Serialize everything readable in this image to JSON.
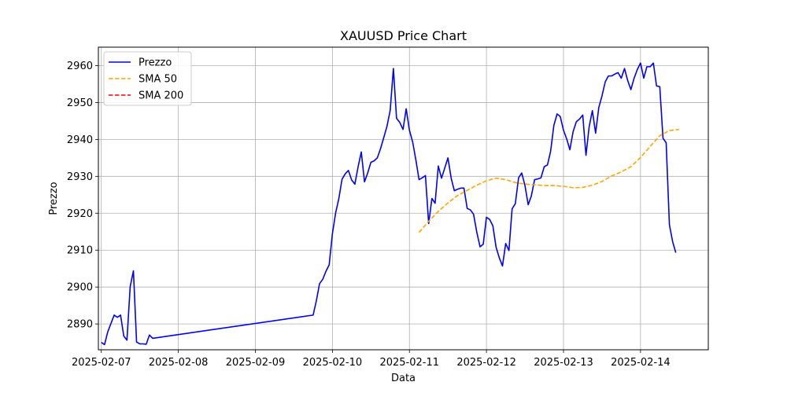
{
  "chart_data": {
    "type": "line",
    "title": "XAUUSD Price Chart",
    "xlabel": "Data",
    "ylabel": "Prezzo",
    "ylim": [
      2883.0,
      2965.0
    ],
    "xlim": [
      -0.038,
      7.88
    ],
    "grid": true,
    "legend_position": "top-left",
    "x_unit": "days since 2025-02-07 00:00",
    "x_ticks": [
      {
        "x": 0,
        "label": "2025-02-07"
      },
      {
        "x": 1,
        "label": "2025-02-08"
      },
      {
        "x": 2,
        "label": "2025-02-09"
      },
      {
        "x": 3,
        "label": "2025-02-10"
      },
      {
        "x": 4,
        "label": "2025-02-11"
      },
      {
        "x": 5,
        "label": "2025-02-12"
      },
      {
        "x": 6,
        "label": "2025-02-13"
      },
      {
        "x": 7,
        "label": "2025-02-14"
      }
    ],
    "y_ticks": [
      2890,
      2900,
      2910,
      2920,
      2930,
      2940,
      2950,
      2960
    ],
    "series": [
      {
        "name": "Prezzo",
        "color": "#0000ff",
        "style": "solid",
        "points": [
          [
            0.0,
            2885.0
          ],
          [
            0.042,
            2884.4
          ],
          [
            0.083,
            2887.8
          ],
          [
            0.125,
            2890.1
          ],
          [
            0.167,
            2892.4
          ],
          [
            0.208,
            2891.8
          ],
          [
            0.25,
            2892.4
          ],
          [
            0.292,
            2886.7
          ],
          [
            0.333,
            2885.6
          ],
          [
            0.375,
            2900.1
          ],
          [
            0.417,
            2904.4
          ],
          [
            0.458,
            2885.1
          ],
          [
            0.5,
            2884.6
          ],
          [
            0.542,
            2884.6
          ],
          [
            0.583,
            2884.5
          ],
          [
            0.625,
            2887.0
          ],
          [
            0.667,
            2886.1
          ],
          [
            2.75,
            2892.4
          ],
          [
            2.792,
            2896.3
          ],
          [
            2.833,
            2900.9
          ],
          [
            2.875,
            2902.1
          ],
          [
            2.917,
            2904.3
          ],
          [
            2.958,
            2906.0
          ],
          [
            3.0,
            2914.4
          ],
          [
            3.042,
            2920.1
          ],
          [
            3.083,
            2923.9
          ],
          [
            3.125,
            2929.2
          ],
          [
            3.167,
            2930.7
          ],
          [
            3.208,
            2931.6
          ],
          [
            3.25,
            2929.0
          ],
          [
            3.292,
            2927.9
          ],
          [
            3.333,
            2932.5
          ],
          [
            3.375,
            2936.6
          ],
          [
            3.417,
            2928.5
          ],
          [
            3.458,
            2930.9
          ],
          [
            3.5,
            2933.8
          ],
          [
            3.542,
            2934.2
          ],
          [
            3.583,
            2935.0
          ],
          [
            3.625,
            2937.5
          ],
          [
            3.667,
            2940.5
          ],
          [
            3.708,
            2943.5
          ],
          [
            3.75,
            2947.8
          ],
          [
            3.792,
            2959.2
          ],
          [
            3.833,
            2945.7
          ],
          [
            3.875,
            2944.6
          ],
          [
            3.917,
            2942.7
          ],
          [
            3.958,
            2948.3
          ],
          [
            4.0,
            2942.5
          ],
          [
            4.042,
            2939.3
          ],
          [
            4.083,
            2934.5
          ],
          [
            4.125,
            2929.1
          ],
          [
            4.167,
            2929.6
          ],
          [
            4.208,
            2930.2
          ],
          [
            4.25,
            2917.2
          ],
          [
            4.292,
            2924.0
          ],
          [
            4.333,
            2922.7
          ],
          [
            4.375,
            2932.8
          ],
          [
            4.417,
            2929.5
          ],
          [
            4.458,
            2932.2
          ],
          [
            4.5,
            2935.0
          ],
          [
            4.542,
            2929.5
          ],
          [
            4.583,
            2926.1
          ],
          [
            4.625,
            2926.5
          ],
          [
            4.667,
            2926.8
          ],
          [
            4.708,
            2926.8
          ],
          [
            4.75,
            2921.3
          ],
          [
            4.792,
            2920.9
          ],
          [
            4.833,
            2919.7
          ],
          [
            4.875,
            2914.8
          ],
          [
            4.917,
            2910.9
          ],
          [
            4.958,
            2911.6
          ],
          [
            5.0,
            2918.9
          ],
          [
            5.042,
            2918.3
          ],
          [
            5.083,
            2916.6
          ],
          [
            5.125,
            2910.8
          ],
          [
            5.167,
            2907.9
          ],
          [
            5.208,
            2905.7
          ],
          [
            5.25,
            2911.8
          ],
          [
            5.292,
            2909.9
          ],
          [
            5.333,
            2921.2
          ],
          [
            5.375,
            2922.6
          ],
          [
            5.417,
            2929.6
          ],
          [
            5.458,
            2930.9
          ],
          [
            5.5,
            2927.5
          ],
          [
            5.542,
            2922.3
          ],
          [
            5.583,
            2924.7
          ],
          [
            5.625,
            2929.1
          ],
          [
            5.667,
            2929.3
          ],
          [
            5.708,
            2929.6
          ],
          [
            5.75,
            2932.6
          ],
          [
            5.792,
            2933.1
          ],
          [
            5.833,
            2936.8
          ],
          [
            5.875,
            2943.8
          ],
          [
            5.917,
            2946.9
          ],
          [
            5.958,
            2946.2
          ],
          [
            6.0,
            2942.5
          ],
          [
            6.042,
            2940.1
          ],
          [
            6.083,
            2937.2
          ],
          [
            6.125,
            2942.1
          ],
          [
            6.167,
            2944.8
          ],
          [
            6.208,
            2945.5
          ],
          [
            6.25,
            2946.6
          ],
          [
            6.292,
            2935.7
          ],
          [
            6.333,
            2943.4
          ],
          [
            6.375,
            2947.8
          ],
          [
            6.417,
            2941.7
          ],
          [
            6.458,
            2948.6
          ],
          [
            6.5,
            2951.8
          ],
          [
            6.542,
            2955.6
          ],
          [
            6.583,
            2957.2
          ],
          [
            6.625,
            2957.2
          ],
          [
            6.667,
            2957.7
          ],
          [
            6.708,
            2958.1
          ],
          [
            6.75,
            2956.6
          ],
          [
            6.792,
            2959.2
          ],
          [
            6.833,
            2956.0
          ],
          [
            6.875,
            2953.5
          ],
          [
            6.917,
            2956.6
          ],
          [
            6.958,
            2958.9
          ],
          [
            7.0,
            2960.7
          ],
          [
            7.042,
            2956.6
          ],
          [
            7.083,
            2959.7
          ],
          [
            7.125,
            2959.7
          ],
          [
            7.167,
            2960.7
          ],
          [
            7.208,
            2954.5
          ],
          [
            7.25,
            2954.3
          ],
          [
            7.292,
            2940.3
          ],
          [
            7.333,
            2939.1
          ],
          [
            7.375,
            2916.9
          ],
          [
            7.417,
            2912.3
          ],
          [
            7.458,
            2909.3
          ]
        ]
      },
      {
        "name": "SMA 50",
        "color": "#ffa500",
        "style": "dashed",
        "points": [
          [
            4.125,
            2914.8
          ],
          [
            4.25,
            2917.8
          ],
          [
            4.375,
            2920.5
          ],
          [
            4.5,
            2922.8
          ],
          [
            4.625,
            2924.8
          ],
          [
            4.75,
            2926.2
          ],
          [
            4.875,
            2927.6
          ],
          [
            5.0,
            2928.8
          ],
          [
            5.125,
            2929.5
          ],
          [
            5.25,
            2929.1
          ],
          [
            5.375,
            2928.3
          ],
          [
            5.5,
            2927.9
          ],
          [
            5.625,
            2927.7
          ],
          [
            5.75,
            2927.5
          ],
          [
            5.875,
            2927.5
          ],
          [
            6.0,
            2927.3
          ],
          [
            6.125,
            2926.9
          ],
          [
            6.25,
            2927.0
          ],
          [
            6.375,
            2927.6
          ],
          [
            6.5,
            2928.6
          ],
          [
            6.625,
            2930.1
          ],
          [
            6.75,
            2931.2
          ],
          [
            6.875,
            2932.6
          ],
          [
            7.0,
            2935.1
          ],
          [
            7.125,
            2938.1
          ],
          [
            7.25,
            2941.0
          ],
          [
            7.375,
            2942.4
          ],
          [
            7.5,
            2942.7
          ]
        ]
      },
      {
        "name": "SMA 200",
        "color": "#ff0000",
        "style": "dashed",
        "points": []
      }
    ]
  }
}
